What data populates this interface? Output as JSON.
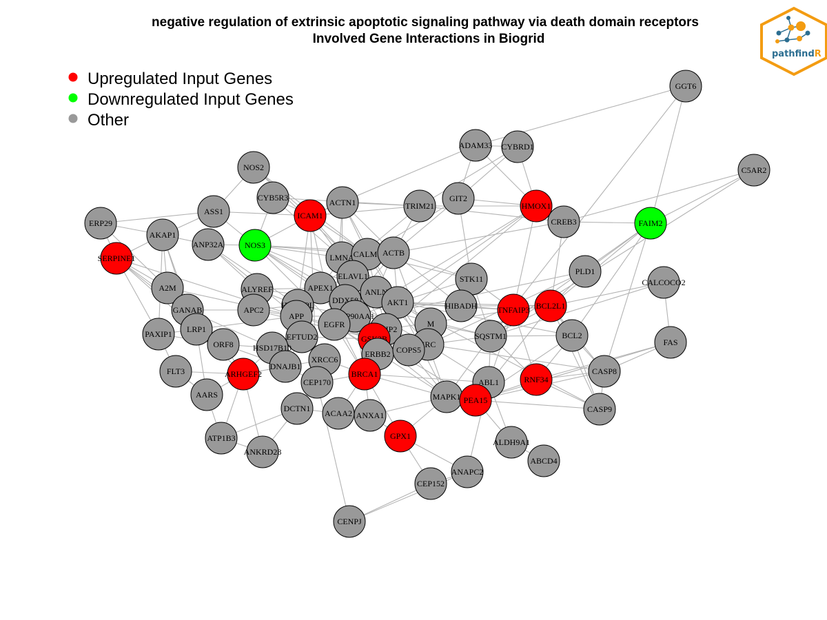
{
  "title": {
    "line1": "negative regulation of extrinsic apoptotic signaling pathway via death domain receptors",
    "line2": "Involved Gene Interactions in Biogrid"
  },
  "logo": {
    "text_main": "pathfind",
    "text_accent": "R",
    "accent_color": "#f39c12",
    "main_color": "#2c6e91"
  },
  "legend": [
    {
      "label": "Upregulated Input Genes",
      "color": "#ff0000"
    },
    {
      "label": "Downregulated Input Genes",
      "color": "#00ff00"
    },
    {
      "label": "Other",
      "color": "#999999"
    }
  ],
  "colors": {
    "up": "#ff0000",
    "down": "#00ff00",
    "other": "#999999",
    "edge": "#b3b3b3"
  },
  "network": {
    "nodes": [
      {
        "id": "GGT6",
        "type": "other"
      },
      {
        "id": "ADAM33",
        "type": "other"
      },
      {
        "id": "CYBRD1",
        "type": "other"
      },
      {
        "id": "C5AR2",
        "type": "other"
      },
      {
        "id": "NOS2",
        "type": "other"
      },
      {
        "id": "CYB5R3",
        "type": "other"
      },
      {
        "id": "ACTN1",
        "type": "other"
      },
      {
        "id": "TRIM21",
        "type": "other"
      },
      {
        "id": "GIT2",
        "type": "other"
      },
      {
        "id": "HMOX1",
        "type": "up"
      },
      {
        "id": "CREB3",
        "type": "other"
      },
      {
        "id": "FAIM2",
        "type": "down"
      },
      {
        "id": "ERP29",
        "type": "other"
      },
      {
        "id": "ASS1",
        "type": "other"
      },
      {
        "id": "ICAM1",
        "type": "up"
      },
      {
        "id": "AKAP1",
        "type": "other"
      },
      {
        "id": "ANP32A",
        "type": "other"
      },
      {
        "id": "NOS3",
        "type": "down"
      },
      {
        "id": "SERPINE1",
        "type": "up"
      },
      {
        "id": "LMNA",
        "type": "other"
      },
      {
        "id": "CALM1",
        "type": "other"
      },
      {
        "id": "ACTB",
        "type": "other"
      },
      {
        "id": "PLD1",
        "type": "other"
      },
      {
        "id": "CALCOCO2",
        "type": "other"
      },
      {
        "id": "A2M",
        "type": "other"
      },
      {
        "id": "ALYREF",
        "type": "other"
      },
      {
        "id": "APEX1",
        "type": "other"
      },
      {
        "id": "ELAVL1",
        "type": "other"
      },
      {
        "id": "STK11",
        "type": "other"
      },
      {
        "id": "ANLN",
        "type": "other"
      },
      {
        "id": "DDX58",
        "type": "other"
      },
      {
        "id": "AKT1",
        "type": "other"
      },
      {
        "id": "HIBADH",
        "type": "other"
      },
      {
        "id": "TNFAIP3",
        "type": "up"
      },
      {
        "id": "BCL2L1",
        "type": "up"
      },
      {
        "id": "GANAB",
        "type": "other"
      },
      {
        "id": "APC2",
        "type": "other"
      },
      {
        "id": "HNRNPL",
        "type": "other"
      },
      {
        "id": "APP",
        "type": "other"
      },
      {
        "id": "HSP90AA1",
        "type": "other"
      },
      {
        "id": "EGFR",
        "type": "other"
      },
      {
        "id": "TNIP2",
        "type": "other"
      },
      {
        "id": "M",
        "type": "other"
      },
      {
        "id": "SQSTM1",
        "type": "other"
      },
      {
        "id": "BCL2",
        "type": "other"
      },
      {
        "id": "FAS",
        "type": "other"
      },
      {
        "id": "PAXIP1",
        "type": "other"
      },
      {
        "id": "LRP1",
        "type": "other"
      },
      {
        "id": "ORF8",
        "type": "other"
      },
      {
        "id": "EFTUD2",
        "type": "other"
      },
      {
        "id": "GSK3B",
        "type": "up"
      },
      {
        "id": "SRC",
        "type": "other"
      },
      {
        "id": "HSD17B10",
        "type": "other"
      },
      {
        "id": "ERBB2",
        "type": "other"
      },
      {
        "id": "COPS5",
        "type": "other"
      },
      {
        "id": "FLT3",
        "type": "other"
      },
      {
        "id": "ARHGEF2",
        "type": "up"
      },
      {
        "id": "DNAJB1",
        "type": "other"
      },
      {
        "id": "XRCC6",
        "type": "other"
      },
      {
        "id": "BRCA1",
        "type": "up"
      },
      {
        "id": "CEP170",
        "type": "other"
      },
      {
        "id": "ABL1",
        "type": "other"
      },
      {
        "id": "RNF34",
        "type": "up"
      },
      {
        "id": "CASP8",
        "type": "other"
      },
      {
        "id": "AARS",
        "type": "other"
      },
      {
        "id": "MAPK1",
        "type": "other"
      },
      {
        "id": "PEA15",
        "type": "up"
      },
      {
        "id": "CASP9",
        "type": "other"
      },
      {
        "id": "DCTN1",
        "type": "other"
      },
      {
        "id": "ACAA2",
        "type": "other"
      },
      {
        "id": "ANXA1",
        "type": "other"
      },
      {
        "id": "ATP1B3",
        "type": "other"
      },
      {
        "id": "GPX1",
        "type": "up"
      },
      {
        "id": "ALDH9A1",
        "type": "other"
      },
      {
        "id": "ANKRD28",
        "type": "other"
      },
      {
        "id": "ABCD4",
        "type": "other"
      },
      {
        "id": "ANAPC2",
        "type": "other"
      },
      {
        "id": "CEP152",
        "type": "other"
      },
      {
        "id": "CENPJ",
        "type": "other"
      }
    ],
    "edges": [
      [
        "GGT6",
        "FAIM2"
      ],
      [
        "GGT6",
        "ADAM33"
      ],
      [
        "GGT6",
        "SQSTM1"
      ],
      [
        "ADAM33",
        "ICAM1"
      ],
      [
        "ADAM33",
        "GIT2"
      ],
      [
        "ADAM33",
        "CYBRD1"
      ],
      [
        "ADAM33",
        "HMOX1"
      ],
      [
        "CYBRD1",
        "HMOX1"
      ],
      [
        "CYBRD1",
        "TRIM21"
      ],
      [
        "CYBRD1",
        "GIT2"
      ],
      [
        "C5AR2",
        "FAIM2"
      ],
      [
        "C5AR2",
        "CREB3"
      ],
      [
        "C5AR2",
        "SQSTM1"
      ],
      [
        "NOS2",
        "ICAM1"
      ],
      [
        "NOS2",
        "CALM1"
      ],
      [
        "NOS2",
        "AKT1"
      ],
      [
        "CYB5R3",
        "ICAM1"
      ],
      [
        "CYB5R3",
        "TRIM21"
      ],
      [
        "CYB5R3",
        "LMNA"
      ],
      [
        "CYB5R3",
        "NOS3"
      ],
      [
        "ACTN1",
        "TRIM21"
      ],
      [
        "ACTN1",
        "CALM1"
      ],
      [
        "ACTN1",
        "ACTB"
      ],
      [
        "ACTN1",
        "LMNA"
      ],
      [
        "ACTN1",
        "ICAM1"
      ],
      [
        "ACTN1",
        "EGFR"
      ],
      [
        "ACTN1",
        "AKT1"
      ],
      [
        "TRIM21",
        "HMOX1"
      ],
      [
        "TRIM21",
        "ICAM1"
      ],
      [
        "TRIM21",
        "ACTB"
      ],
      [
        "TRIM21",
        "CREB3"
      ],
      [
        "TRIM21",
        "APEX1"
      ],
      [
        "GIT2",
        "ACTB"
      ],
      [
        "GIT2",
        "CALM1"
      ],
      [
        "GIT2",
        "STK11"
      ],
      [
        "GIT2",
        "HMOX1"
      ],
      [
        "HMOX1",
        "CREB3"
      ],
      [
        "HMOX1",
        "AKT1"
      ],
      [
        "HMOX1",
        "HSP90AA1"
      ],
      [
        "HMOX1",
        "TNFAIP3"
      ],
      [
        "HMOX1",
        "GSK3B"
      ],
      [
        "CREB3",
        "FAIM2"
      ],
      [
        "CREB3",
        "BCL2L1"
      ],
      [
        "CREB3",
        "ACTB"
      ],
      [
        "FAIM2",
        "BCL2L1"
      ],
      [
        "FAIM2",
        "BCL2"
      ],
      [
        "FAIM2",
        "CASP8"
      ],
      [
        "FAIM2",
        "SQSTM1"
      ],
      [
        "FAIM2",
        "PLD1"
      ],
      [
        "ERP29",
        "SERPINE1"
      ],
      [
        "ERP29",
        "AKAP1"
      ],
      [
        "ERP29",
        "ASS1"
      ],
      [
        "ERP29",
        "A2M"
      ],
      [
        "ASS1",
        "AKAP1"
      ],
      [
        "ASS1",
        "ICAM1"
      ],
      [
        "ASS1",
        "NOS3"
      ],
      [
        "ASS1",
        "NOS2"
      ],
      [
        "ICAM1",
        "NOS3"
      ],
      [
        "ICAM1",
        "CALM1"
      ],
      [
        "ICAM1",
        "LMNA"
      ],
      [
        "ICAM1",
        "EGFR"
      ],
      [
        "ICAM1",
        "SRC"
      ],
      [
        "ICAM1",
        "APP"
      ],
      [
        "ICAM1",
        "CEP170"
      ],
      [
        "AKAP1",
        "SERPINE1"
      ],
      [
        "AKAP1",
        "ANP32A"
      ],
      [
        "AKAP1",
        "A2M"
      ],
      [
        "AKAP1",
        "GANAB"
      ],
      [
        "AKAP1",
        "PAXIP1"
      ],
      [
        "AKAP1",
        "LRP1"
      ],
      [
        "ANP32A",
        "NOS3"
      ],
      [
        "ANP32A",
        "APP"
      ],
      [
        "ANP32A",
        "ALYREF"
      ],
      [
        "ANP32A",
        "HNRNPL"
      ],
      [
        "NOS3",
        "CALM1"
      ],
      [
        "NOS3",
        "AKT1"
      ],
      [
        "NOS3",
        "HSP90AA1"
      ],
      [
        "NOS3",
        "LMNA"
      ],
      [
        "NOS3",
        "ACTB"
      ],
      [
        "NOS3",
        "APEX1"
      ],
      [
        "NOS3",
        "SRC"
      ],
      [
        "NOS3",
        "EGFR"
      ],
      [
        "SERPINE1",
        "A2M"
      ],
      [
        "SERPINE1",
        "LRP1"
      ],
      [
        "SERPINE1",
        "GANAB"
      ],
      [
        "SERPINE1",
        "APP"
      ],
      [
        "SERPINE1",
        "PAXIP1"
      ],
      [
        "SERPINE1",
        "ORF8"
      ],
      [
        "LMNA",
        "CALM1"
      ],
      [
        "LMNA",
        "ACTB"
      ],
      [
        "LMNA",
        "ELAVL1"
      ],
      [
        "LMNA",
        "APEX1"
      ],
      [
        "LMNA",
        "GSK3B"
      ],
      [
        "LMNA",
        "AKT1"
      ],
      [
        "CALM1",
        "ACTB"
      ],
      [
        "CALM1",
        "AKT1"
      ],
      [
        "CALM1",
        "ELAVL1"
      ],
      [
        "CALM1",
        "EGFR"
      ],
      [
        "CALM1",
        "ANLN"
      ],
      [
        "CALM1",
        "STK11"
      ],
      [
        "ACTB",
        "STK11"
      ],
      [
        "ACTB",
        "ANLN"
      ],
      [
        "ACTB",
        "AKT1"
      ],
      [
        "ACTB",
        "EGFR"
      ],
      [
        "ACTB",
        "SRC"
      ],
      [
        "ACTB",
        "HIBADH"
      ],
      [
        "PLD1",
        "BCL2L1"
      ],
      [
        "PLD1",
        "SRC"
      ],
      [
        "PLD1",
        "EGFR"
      ],
      [
        "CALCOCO2",
        "FAS"
      ],
      [
        "CALCOCO2",
        "SQSTM1"
      ],
      [
        "CALCOCO2",
        "BCL2L1"
      ],
      [
        "A2M",
        "LRP1"
      ],
      [
        "A2M",
        "GANAB"
      ],
      [
        "A2M",
        "APP"
      ],
      [
        "ALYREF",
        "HNRNPL"
      ],
      [
        "ALYREF",
        "APEX1"
      ],
      [
        "ALYREF",
        "DDX58"
      ],
      [
        "APEX1",
        "ELAVL1"
      ],
      [
        "APEX1",
        "HNRNPL"
      ],
      [
        "APEX1",
        "DDX58"
      ],
      [
        "APEX1",
        "BRCA1"
      ],
      [
        "ELAVL1",
        "ANLN"
      ],
      [
        "ELAVL1",
        "DDX58"
      ],
      [
        "ELAVL1",
        "HSP90AA1"
      ],
      [
        "ELAVL1",
        "TNIP2"
      ],
      [
        "STK11",
        "AKT1"
      ],
      [
        "STK11",
        "HIBADH"
      ],
      [
        "STK11",
        "SQSTM1"
      ],
      [
        "STK11",
        "TNFAIP3"
      ],
      [
        "ANLN",
        "AKT1"
      ],
      [
        "ANLN",
        "DDX58"
      ],
      [
        "ANLN",
        "TNIP2"
      ],
      [
        "DDX58",
        "HSP90AA1"
      ],
      [
        "DDX58",
        "TNFAIP3"
      ],
      [
        "DDX58",
        "SQSTM1"
      ],
      [
        "AKT1",
        "HSP90AA1"
      ],
      [
        "AKT1",
        "GSK3B"
      ],
      [
        "AKT1",
        "M"
      ],
      [
        "AKT1",
        "TNFAIP3"
      ],
      [
        "AKT1",
        "BCL2L1"
      ],
      [
        "AKT1",
        "SRC"
      ],
      [
        "AKT1",
        "BCL2"
      ],
      [
        "AKT1",
        "CASP9"
      ],
      [
        "AKT1",
        "MAPK1"
      ],
      [
        "HIBADH",
        "TNFAIP3"
      ],
      [
        "HIBADH",
        "BCL2L1"
      ],
      [
        "TNFAIP3",
        "BCL2L1"
      ],
      [
        "TNFAIP3",
        "SQSTM1"
      ],
      [
        "TNFAIP3",
        "TNIP2"
      ],
      [
        "TNFAIP3",
        "ABL1"
      ],
      [
        "TNFAIP3",
        "RNF34"
      ],
      [
        "BCL2L1",
        "BCL2"
      ],
      [
        "BCL2L1",
        "SQSTM1"
      ],
      [
        "BCL2L1",
        "PEA15"
      ],
      [
        "BCL2L1",
        "CASP8"
      ],
      [
        "BCL2L1",
        "CASP9"
      ],
      [
        "GANAB",
        "LRP1"
      ],
      [
        "GANAB",
        "APC2"
      ],
      [
        "GANAB",
        "HSD17B10"
      ],
      [
        "APC2",
        "APP"
      ],
      [
        "APC2",
        "GSK3B"
      ],
      [
        "APC2",
        "HNRNPL"
      ],
      [
        "HNRNPL",
        "APP"
      ],
      [
        "HNRNPL",
        "HSP90AA1"
      ],
      [
        "HNRNPL",
        "EFTUD2"
      ],
      [
        "APP",
        "EGFR"
      ],
      [
        "APP",
        "GSK3B"
      ],
      [
        "APP",
        "LRP1"
      ],
      [
        "APP",
        "EFTUD2"
      ],
      [
        "APP",
        "HSP90AA1"
      ],
      [
        "HSP90AA1",
        "EGFR"
      ],
      [
        "HSP90AA1",
        "GSK3B"
      ],
      [
        "HSP90AA1",
        "TNIP2"
      ],
      [
        "HSP90AA1",
        "SRC"
      ],
      [
        "HSP90AA1",
        "ERBB2"
      ],
      [
        "HSP90AA1",
        "BRCA1"
      ],
      [
        "EGFR",
        "GSK3B"
      ],
      [
        "EGFR",
        "ERBB2"
      ],
      [
        "EGFR",
        "SRC"
      ],
      [
        "EGFR",
        "BRCA1"
      ],
      [
        "EGFR",
        "MAPK1"
      ],
      [
        "TNIP2",
        "GSK3B"
      ],
      [
        "TNIP2",
        "COPS5"
      ],
      [
        "M",
        "SRC"
      ],
      [
        "M",
        "SQSTM1"
      ],
      [
        "M",
        "COPS5"
      ],
      [
        "SQSTM1",
        "BCL2"
      ],
      [
        "SQSTM1",
        "SRC"
      ],
      [
        "SQSTM1",
        "ABL1"
      ],
      [
        "SQSTM1",
        "MAPK1"
      ],
      [
        "SQSTM1",
        "RNF34"
      ],
      [
        "BCL2",
        "CASP8"
      ],
      [
        "BCL2",
        "CASP9"
      ],
      [
        "BCL2",
        "RNF34"
      ],
      [
        "BCL2",
        "PEA15"
      ],
      [
        "FAS",
        "CASP8"
      ],
      [
        "FAS",
        "RNF34"
      ],
      [
        "FAS",
        "PEA15"
      ],
      [
        "PAXIP1",
        "LRP1"
      ],
      [
        "PAXIP1",
        "FLT3"
      ],
      [
        "PAXIP1",
        "ORF8"
      ],
      [
        "LRP1",
        "ORF8"
      ],
      [
        "LRP1",
        "ARHGEF2"
      ],
      [
        "LRP1",
        "AARS"
      ],
      [
        "ORF8",
        "HSD17B10"
      ],
      [
        "ORF8",
        "ARHGEF2"
      ],
      [
        "ORF8",
        "DNAJB1"
      ],
      [
        "EFTUD2",
        "GSK3B"
      ],
      [
        "EFTUD2",
        "XRCC6"
      ],
      [
        "EFTUD2",
        "DNAJB1"
      ],
      [
        "GSK3B",
        "ERBB2"
      ],
      [
        "GSK3B",
        "BRCA1"
      ],
      [
        "GSK3B",
        "SRC"
      ],
      [
        "GSK3B",
        "COPS5"
      ],
      [
        "GSK3B",
        "MAPK1"
      ],
      [
        "GSK3B",
        "PEA15"
      ],
      [
        "SRC",
        "ERBB2"
      ],
      [
        "SRC",
        "COPS5"
      ],
      [
        "SRC",
        "ABL1"
      ],
      [
        "SRC",
        "MAPK1"
      ],
      [
        "SRC",
        "CASP8"
      ],
      [
        "HSD17B10",
        "DNAJB1"
      ],
      [
        "HSD17B10",
        "ARHGEF2"
      ],
      [
        "ERBB2",
        "BRCA1"
      ],
      [
        "ERBB2",
        "COPS5"
      ],
      [
        "COPS5",
        "BRCA1"
      ],
      [
        "COPS5",
        "MAPK1"
      ],
      [
        "FLT3",
        "ARHGEF2"
      ],
      [
        "FLT3",
        "AARS"
      ],
      [
        "ARHGEF2",
        "DNAJB1"
      ],
      [
        "ARHGEF2",
        "AARS"
      ],
      [
        "ARHGEF2",
        "ATP1B3"
      ],
      [
        "ARHGEF2",
        "ANKRD28"
      ],
      [
        "DNAJB1",
        "XRCC6"
      ],
      [
        "DNAJB1",
        "CEP170"
      ],
      [
        "XRCC6",
        "BRCA1"
      ],
      [
        "XRCC6",
        "CEP170"
      ],
      [
        "BRCA1",
        "CEP170"
      ],
      [
        "BRCA1",
        "ACAA2"
      ],
      [
        "BRCA1",
        "ANXA1"
      ],
      [
        "BRCA1",
        "GPX1"
      ],
      [
        "BRCA1",
        "MAPK1"
      ],
      [
        "BRCA1",
        "ABL1"
      ],
      [
        "CEP170",
        "DCTN1"
      ],
      [
        "CEP170",
        "CENPJ"
      ],
      [
        "ABL1",
        "MAPK1"
      ],
      [
        "ABL1",
        "PEA15"
      ],
      [
        "ABL1",
        "ALDH9A1"
      ],
      [
        "RNF34",
        "CASP8"
      ],
      [
        "RNF34",
        "CASP9"
      ],
      [
        "RNF34",
        "PEA15"
      ],
      [
        "CASP8",
        "CASP9"
      ],
      [
        "CASP8",
        "PEA15"
      ],
      [
        "AARS",
        "ATP1B3"
      ],
      [
        "MAPK1",
        "PEA15"
      ],
      [
        "MAPK1",
        "ANXA1"
      ],
      [
        "MAPK1",
        "GPX1"
      ],
      [
        "PEA15",
        "CASP9"
      ],
      [
        "PEA15",
        "ALDH9A1"
      ],
      [
        "DCTN1",
        "ACAA2"
      ],
      [
        "DCTN1",
        "ANKRD28"
      ],
      [
        "ACAA2",
        "ANXA1"
      ],
      [
        "ANXA1",
        "GPX1"
      ],
      [
        "ATP1B3",
        "ANKRD28"
      ],
      [
        "ATP1B3",
        "DCTN1"
      ],
      [
        "GPX1",
        "CEP152"
      ],
      [
        "GPX1",
        "ANAPC2"
      ],
      [
        "ALDH9A1",
        "ABCD4"
      ],
      [
        "ANAPC2",
        "CEP152"
      ],
      [
        "ANAPC2",
        "CENPJ"
      ],
      [
        "ANAPC2",
        "ABL1"
      ],
      [
        "CEP152",
        "CENPJ"
      ]
    ]
  }
}
